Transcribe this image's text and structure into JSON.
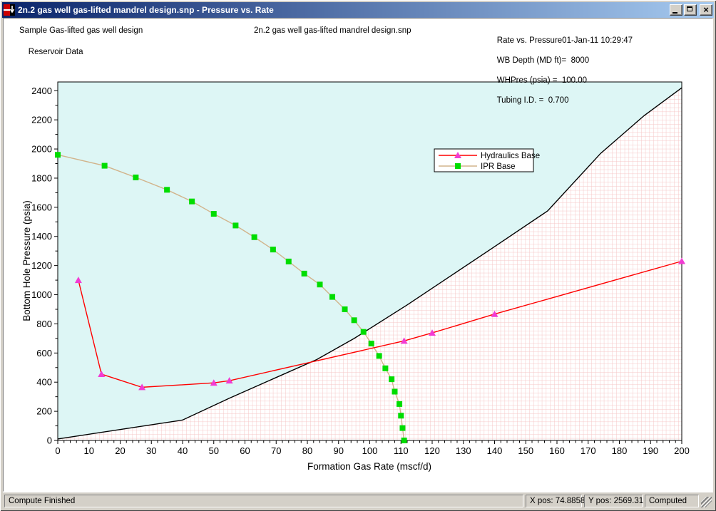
{
  "window": {
    "title": "2n.2 gas well gas-lifted mandrel design.snp - Pressure vs. Rate"
  },
  "header": {
    "left_line1": "Sample Gas-lifted gas well design",
    "left_line2": "Reservoir Data",
    "center": "2n.2 gas well gas-lifted mandrel design.snp",
    "right_lines": [
      "Rate vs. Pressure01-Jan-11 10:29:47",
      "WB Depth (MD ft)=  8000",
      "WHPres (psia) =  100.00",
      "Tubing I.D. =  0.700"
    ]
  },
  "chart_data": {
    "type": "line",
    "title": "",
    "xlabel": "Formation Gas Rate (mscf/d)",
    "ylabel": "Bottom Hole Pressure (psia)",
    "xlim": [
      0,
      200
    ],
    "ylim": [
      0,
      2460
    ],
    "xticks": [
      0,
      10,
      20,
      30,
      40,
      50,
      60,
      70,
      80,
      90,
      100,
      110,
      120,
      130,
      140,
      150,
      160,
      170,
      180,
      190,
      200
    ],
    "yticks": [
      0,
      200,
      400,
      600,
      800,
      1000,
      1200,
      1400,
      1600,
      1800,
      2000,
      2200,
      2400
    ],
    "x_minor_step": 2,
    "y_minor_step": 100,
    "grid": "off",
    "colors": {
      "plot_bg": "#ddf6f5",
      "hatch_bg": "#ffffff",
      "hatch_grid": "#f6c6c6",
      "axis": "#000000"
    },
    "legend": {
      "position": "upper-middle",
      "entries": [
        "Hydraulics Base",
        "IPR Base"
      ]
    },
    "series": [
      {
        "name": "Flow Boundary",
        "role": "boundary",
        "color": "#000000",
        "marker": "none",
        "in_legend": false,
        "points": [
          [
            0,
            10
          ],
          [
            40,
            140
          ],
          [
            55,
            290
          ],
          [
            83,
            555
          ],
          [
            95,
            700
          ],
          [
            112,
            930
          ],
          [
            140,
            1330
          ],
          [
            157,
            1575
          ],
          [
            174,
            1970
          ],
          [
            188,
            2230
          ],
          [
            200,
            2420
          ]
        ]
      },
      {
        "name": "IPR Base",
        "role": "data",
        "color": "#d2b48c",
        "marker": "square",
        "marker_color": "#00dd00",
        "in_legend": true,
        "points": [
          [
            0,
            1960
          ],
          [
            15,
            1885
          ],
          [
            25,
            1805
          ],
          [
            35,
            1720
          ],
          [
            43,
            1640
          ],
          [
            50,
            1555
          ],
          [
            57,
            1475
          ],
          [
            63,
            1395
          ],
          [
            69,
            1310
          ],
          [
            74,
            1228
          ],
          [
            79,
            1145
          ],
          [
            84,
            1070
          ],
          [
            88,
            985
          ],
          [
            92,
            900
          ],
          [
            95,
            825
          ],
          [
            98,
            745
          ],
          [
            100.5,
            665
          ],
          [
            103,
            580
          ],
          [
            105,
            495
          ],
          [
            107,
            420
          ],
          [
            108,
            335
          ],
          [
            109.5,
            250
          ],
          [
            110,
            170
          ],
          [
            110.5,
            85
          ],
          [
            111,
            0
          ]
        ]
      },
      {
        "name": "Hydraulics Base",
        "role": "data",
        "color": "#ff0000",
        "marker": "triangle",
        "marker_color": "#f23cd4",
        "in_legend": true,
        "points": [
          [
            6.6,
            1100
          ],
          [
            14,
            455
          ],
          [
            27,
            365
          ],
          [
            50,
            395
          ],
          [
            55,
            410
          ],
          [
            111,
            683
          ],
          [
            120,
            738
          ],
          [
            140,
            867
          ],
          [
            200,
            1230
          ]
        ]
      }
    ]
  },
  "statusbar": {
    "message": "Compute Finished",
    "x_pos": "X pos: 74.8858",
    "y_pos": "Y pos: 2569.31",
    "state": "Computed"
  }
}
